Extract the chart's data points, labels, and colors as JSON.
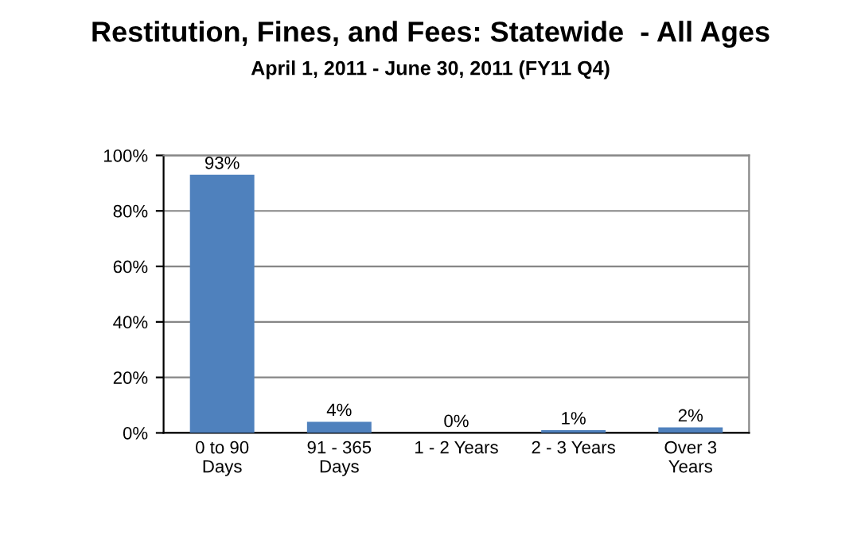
{
  "chart_data": {
    "type": "bar",
    "title": "Restitution, Fines, and Fees: Statewide  - All Ages",
    "subtitle": "April 1, 2011 - June 30, 2011 (FY11 Q4)",
    "categories": [
      "0 to 90\nDays",
      "91 - 365\nDays",
      "1 - 2 Years",
      "2 - 3 Years",
      "Over 3\nYears"
    ],
    "values": [
      93,
      4,
      0,
      1,
      2
    ],
    "color": "#4f81bd",
    "value_labels": [
      "93%",
      "4%",
      "0%",
      "1%",
      "2%"
    ],
    "ylim": [
      0,
      100
    ],
    "yticks": [
      {
        "value": 0,
        "label": "0%"
      },
      {
        "value": 20,
        "label": "20%"
      },
      {
        "value": 40,
        "label": "40%"
      },
      {
        "value": 60,
        "label": "60%"
      },
      {
        "value": 80,
        "label": "80%"
      },
      {
        "value": 100,
        "label": "100%"
      }
    ],
    "grid": "y",
    "legend": false
  }
}
